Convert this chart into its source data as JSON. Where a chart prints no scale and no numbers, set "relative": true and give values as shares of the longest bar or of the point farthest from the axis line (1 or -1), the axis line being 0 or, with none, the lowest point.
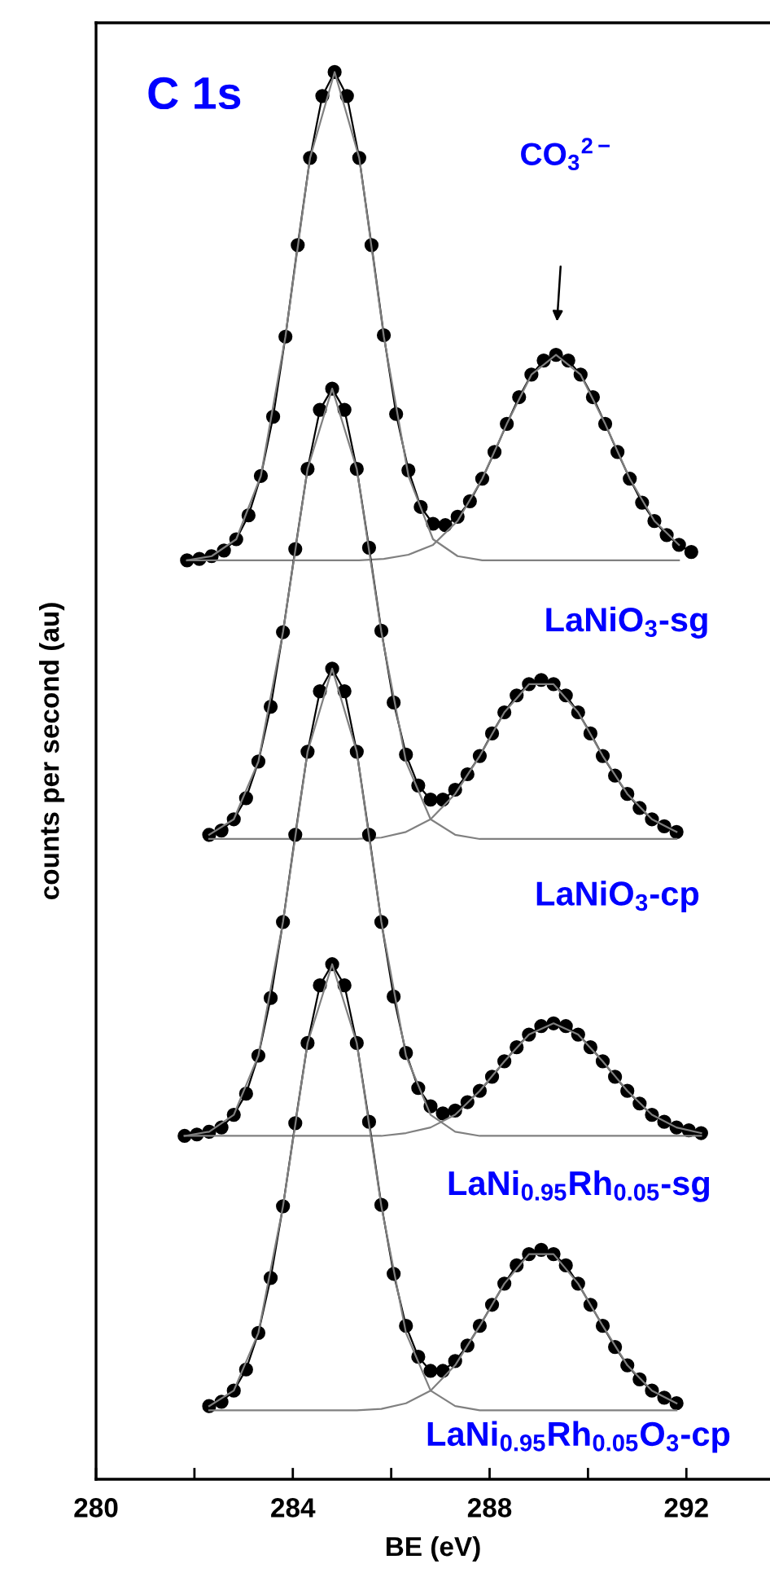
{
  "chart_data": {
    "type": "line",
    "relative": true,
    "xlabel": "BE (eV)",
    "ylabel": "counts per second (au)",
    "xlim": [
      280,
      293.7
    ],
    "xticks": [
      280,
      {
        "value": 282,
        "label": null
      },
      284,
      {
        "value": 286,
        "label": null
      },
      288,
      {
        "value": 290,
        "label": null
      },
      292
    ],
    "tick_labels": "x",
    "grid": false,
    "legend": false,
    "annotations": [
      "C 1s",
      "CO$_{3}$$^{2−}$",
      "LaNiO$_{3}$-sg",
      "LaNiO$_{3}$-cp",
      "LaNi$_{0.95}$Rh$_{0.05}$-sg",
      "LaNi$_{0.95}$Rh$_{0.05}$O$_{3}$-cp"
    ],
    "series": [
      {
        "color": "#000000",
        "marker": "circle",
        "x": [
          281.85,
          282.1,
          282.35,
          282.6,
          282.85,
          283.1,
          283.35,
          283.6,
          283.85,
          284.1,
          284.35,
          284.6,
          284.85,
          285.1,
          285.35,
          285.6,
          285.85,
          286.1,
          286.35,
          286.6,
          286.85,
          287.1,
          287.35,
          287.6,
          287.85,
          288.1,
          288.35,
          288.6,
          288.85,
          289.1,
          289.35,
          289.6,
          289.85,
          290.1,
          290.35,
          290.6,
          290.85,
          291.1,
          291.35,
          291.6,
          291.85,
          292.1
        ],
        "values": [
          0.653,
          0.654,
          0.656,
          0.66,
          0.668,
          0.685,
          0.713,
          0.755,
          0.812,
          0.877,
          0.939,
          0.983,
          1.0,
          0.983,
          0.939,
          0.877,
          0.813,
          0.757,
          0.717,
          0.691,
          0.679,
          0.678,
          0.684,
          0.695,
          0.711,
          0.73,
          0.75,
          0.769,
          0.785,
          0.795,
          0.799,
          0.795,
          0.785,
          0.769,
          0.75,
          0.73,
          0.711,
          0.694,
          0.681,
          0.671,
          0.664,
          0.659
        ]
      },
      {
        "color": "#808080",
        "marker": "none",
        "x": [
          281.85,
          282.35,
          282.85,
          283.35,
          283.85,
          284.35,
          284.85,
          285.35,
          285.85,
          286.35,
          286.85,
          287.35,
          287.85,
          288.35,
          288.85,
          289.35,
          289.85,
          290.35,
          290.85,
          291.35,
          291.85
        ],
        "values": [
          0.653,
          0.656,
          0.668,
          0.713,
          0.812,
          0.939,
          1.0,
          0.939,
          0.812,
          0.713,
          0.668,
          0.656,
          0.653,
          0.653,
          0.653,
          0.653,
          0.653,
          0.653,
          0.653,
          0.653,
          0.653
        ]
      },
      {
        "color": "#808080",
        "marker": "none",
        "x": [
          281.85,
          282.35,
          282.85,
          283.35,
          283.85,
          284.35,
          284.85,
          285.35,
          285.85,
          286.35,
          286.85,
          287.35,
          287.85,
          288.35,
          288.85,
          289.35,
          289.85,
          290.35,
          290.85,
          291.35,
          291.85
        ],
        "values": [
          0.653,
          0.653,
          0.653,
          0.653,
          0.653,
          0.653,
          0.653,
          0.653,
          0.654,
          0.657,
          0.664,
          0.681,
          0.711,
          0.75,
          0.785,
          0.799,
          0.785,
          0.75,
          0.711,
          0.681,
          0.664
        ]
      },
      {
        "color": "#000000",
        "marker": "circle",
        "x": [
          282.3,
          282.55,
          282.8,
          283.05,
          283.3,
          283.55,
          283.8,
          284.05,
          284.3,
          284.55,
          284.8,
          285.05,
          285.3,
          285.55,
          285.8,
          286.05,
          286.3,
          286.55,
          286.8,
          287.05,
          287.3,
          287.55,
          287.8,
          288.05,
          288.3,
          288.55,
          288.8,
          289.05,
          289.3,
          289.55,
          289.8,
          290.05,
          290.3,
          290.55,
          290.8,
          291.05,
          291.3,
          291.55,
          291.8
        ],
        "values": [
          0.458,
          0.461,
          0.469,
          0.484,
          0.51,
          0.549,
          0.602,
          0.661,
          0.718,
          0.76,
          0.775,
          0.76,
          0.718,
          0.662,
          0.603,
          0.552,
          0.515,
          0.493,
          0.483,
          0.483,
          0.49,
          0.501,
          0.514,
          0.53,
          0.545,
          0.557,
          0.565,
          0.568,
          0.565,
          0.557,
          0.545,
          0.53,
          0.514,
          0.5,
          0.487,
          0.477,
          0.469,
          0.464,
          0.46
        ]
      },
      {
        "color": "#808080",
        "marker": "none",
        "x": [
          282.3,
          282.8,
          283.3,
          283.8,
          284.3,
          284.8,
          285.3,
          285.8,
          286.3,
          286.8,
          287.3,
          287.8,
          288.3,
          288.8,
          289.3,
          289.8,
          290.3,
          290.8,
          291.3,
          291.8
        ],
        "values": [
          0.458,
          0.469,
          0.51,
          0.602,
          0.718,
          0.775,
          0.718,
          0.602,
          0.51,
          0.469,
          0.458,
          0.455,
          0.455,
          0.455,
          0.455,
          0.455,
          0.455,
          0.455,
          0.455,
          0.455
        ]
      },
      {
        "color": "#808080",
        "marker": "none",
        "x": [
          282.3,
          282.8,
          283.3,
          283.8,
          284.3,
          284.8,
          285.3,
          285.8,
          286.3,
          286.8,
          287.3,
          287.8,
          288.3,
          288.8,
          289.3,
          289.8,
          290.3,
          290.8,
          291.3,
          291.8
        ],
        "values": [
          0.455,
          0.455,
          0.455,
          0.455,
          0.455,
          0.455,
          0.455,
          0.456,
          0.46,
          0.469,
          0.487,
          0.514,
          0.545,
          0.565,
          0.565,
          0.545,
          0.514,
          0.487,
          0.469,
          0.46
        ]
      },
      {
        "color": "#000000",
        "marker": "circle",
        "x": [
          281.8,
          282.05,
          282.3,
          282.55,
          282.8,
          283.05,
          283.3,
          283.55,
          283.8,
          284.05,
          284.3,
          284.55,
          284.8,
          285.05,
          285.3,
          285.55,
          285.8,
          286.05,
          286.3,
          286.55,
          286.8,
          287.05,
          287.3,
          287.55,
          287.8,
          288.05,
          288.3,
          288.55,
          288.8,
          289.05,
          289.3,
          289.55,
          289.8,
          290.05,
          290.3,
          290.55,
          290.8,
          291.05,
          291.3,
          291.55,
          291.8,
          292.05,
          292.3
        ],
        "values": [
          0.244,
          0.245,
          0.247,
          0.25,
          0.259,
          0.274,
          0.301,
          0.342,
          0.396,
          0.458,
          0.517,
          0.56,
          0.576,
          0.56,
          0.517,
          0.458,
          0.396,
          0.343,
          0.303,
          0.278,
          0.265,
          0.26,
          0.262,
          0.268,
          0.276,
          0.286,
          0.297,
          0.307,
          0.316,
          0.322,
          0.324,
          0.322,
          0.316,
          0.307,
          0.297,
          0.286,
          0.276,
          0.267,
          0.259,
          0.254,
          0.25,
          0.248,
          0.246
        ]
      },
      {
        "color": "#808080",
        "marker": "none",
        "x": [
          281.8,
          282.3,
          282.8,
          283.3,
          283.8,
          284.3,
          284.8,
          285.3,
          285.8,
          286.3,
          286.8,
          287.3,
          287.8,
          288.3,
          288.8,
          289.3,
          289.8,
          290.3,
          290.8,
          291.3,
          291.8,
          292.3
        ],
        "values": [
          0.244,
          0.247,
          0.259,
          0.301,
          0.396,
          0.517,
          0.576,
          0.517,
          0.396,
          0.301,
          0.259,
          0.247,
          0.244,
          0.244,
          0.244,
          0.244,
          0.244,
          0.244,
          0.244,
          0.244,
          0.244,
          0.244
        ]
      },
      {
        "color": "#808080",
        "marker": "none",
        "x": [
          281.8,
          282.3,
          282.8,
          283.3,
          283.8,
          284.3,
          284.8,
          285.3,
          285.8,
          286.3,
          286.8,
          287.3,
          287.8,
          288.3,
          288.8,
          289.3,
          289.8,
          290.3,
          290.8,
          291.3,
          291.8,
          292.3
        ],
        "values": [
          0.244,
          0.244,
          0.244,
          0.244,
          0.244,
          0.244,
          0.244,
          0.244,
          0.244,
          0.246,
          0.25,
          0.259,
          0.276,
          0.297,
          0.316,
          0.324,
          0.316,
          0.297,
          0.276,
          0.259,
          0.25,
          0.246
        ]
      },
      {
        "color": "#000000",
        "marker": "circle",
        "x": [
          282.3,
          282.55,
          282.8,
          283.05,
          283.3,
          283.55,
          283.8,
          284.05,
          284.3,
          284.55,
          284.8,
          285.05,
          285.3,
          285.55,
          285.8,
          286.05,
          286.3,
          286.55,
          286.8,
          287.05,
          287.3,
          287.55,
          287.8,
          288.05,
          288.3,
          288.55,
          288.8,
          289.05,
          289.3,
          289.55,
          289.8,
          290.05,
          290.3,
          290.55,
          290.8,
          291.05,
          291.3,
          291.55,
          291.8
        ],
        "values": [
          0.052,
          0.055,
          0.063,
          0.078,
          0.104,
          0.143,
          0.194,
          0.253,
          0.31,
          0.351,
          0.366,
          0.351,
          0.31,
          0.254,
          0.195,
          0.146,
          0.109,
          0.087,
          0.077,
          0.077,
          0.084,
          0.095,
          0.109,
          0.124,
          0.139,
          0.152,
          0.16,
          0.163,
          0.16,
          0.152,
          0.139,
          0.124,
          0.109,
          0.094,
          0.081,
          0.071,
          0.063,
          0.058,
          0.054
        ]
      },
      {
        "color": "#808080",
        "marker": "none",
        "x": [
          282.3,
          282.8,
          283.3,
          283.8,
          284.3,
          284.8,
          285.3,
          285.8,
          286.3,
          286.8,
          287.3,
          287.8,
          288.3,
          288.8,
          289.3,
          289.8,
          290.3,
          290.8,
          291.3,
          291.8
        ],
        "values": [
          0.052,
          0.063,
          0.104,
          0.194,
          0.31,
          0.366,
          0.31,
          0.194,
          0.104,
          0.063,
          0.052,
          0.049,
          0.049,
          0.049,
          0.049,
          0.049,
          0.049,
          0.049,
          0.049,
          0.049
        ]
      },
      {
        "color": "#808080",
        "marker": "none",
        "x": [
          282.3,
          282.8,
          283.3,
          283.8,
          284.3,
          284.8,
          285.3,
          285.8,
          286.3,
          286.8,
          287.3,
          287.8,
          288.3,
          288.8,
          289.3,
          289.8,
          290.3,
          290.8,
          291.3,
          291.8
        ],
        "values": [
          0.049,
          0.049,
          0.049,
          0.049,
          0.049,
          0.049,
          0.049,
          0.05,
          0.054,
          0.063,
          0.081,
          0.109,
          0.139,
          0.16,
          0.16,
          0.139,
          0.109,
          0.081,
          0.063,
          0.054
        ]
      }
    ]
  }
}
